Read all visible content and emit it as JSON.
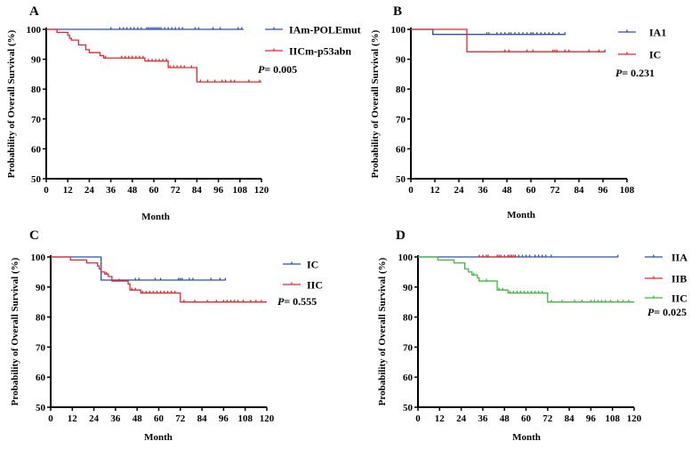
{
  "chart_data": [
    {
      "type": "line",
      "panel": "A",
      "xlabel": "Month",
      "ylabel": "Probability of Overall Survival (%)",
      "xlim": [
        0,
        120
      ],
      "xticks": [
        0,
        12,
        24,
        36,
        48,
        60,
        72,
        84,
        96,
        108,
        120
      ],
      "ylim": [
        50,
        100
      ],
      "yticks": [
        50,
        60,
        70,
        80,
        90,
        100
      ],
      "legend_position": "right",
      "p_value": {
        "prefix": "P",
        "text": "= 0.005"
      },
      "series": [
        {
          "name": "IAm-POLEmut",
          "color": "#2f4fa8",
          "steps": [
            [
              0,
              100
            ]
          ],
          "end": 110,
          "censored": [
            36,
            41,
            43,
            45,
            47,
            49,
            51,
            53,
            56,
            57,
            58,
            59,
            60,
            61,
            62,
            63,
            64,
            66,
            68,
            70,
            72,
            74,
            76,
            83,
            85,
            93,
            97,
            107,
            109
          ]
        },
        {
          "name": "IICm-p53abn",
          "color": "#e8262b",
          "steps": [
            [
              0,
              100
            ],
            [
              6,
              99
            ],
            [
              12,
              98
            ],
            [
              13,
              97
            ],
            [
              14,
              96.4
            ],
            [
              18,
              94.8
            ],
            [
              22,
              93.2
            ],
            [
              24,
              92.2
            ],
            [
              30,
              91.2
            ],
            [
              32,
              90.4
            ],
            [
              55,
              89.4
            ],
            [
              68,
              87.2
            ],
            [
              84,
              82.4
            ]
          ],
          "end": 120,
          "censored": [
            33,
            42,
            44,
            46,
            48,
            50,
            52,
            54,
            57,
            59,
            61,
            63,
            65,
            67,
            69,
            71,
            73,
            75,
            77,
            81,
            86,
            90,
            94,
            98,
            100,
            103,
            105,
            113,
            119
          ]
        }
      ]
    },
    {
      "type": "line",
      "panel": "B",
      "xlabel": "Month",
      "ylabel": "Probability of Overall Survival (%)",
      "xlim": [
        0,
        108
      ],
      "xticks": [
        0,
        12,
        24,
        36,
        48,
        60,
        72,
        84,
        96,
        108
      ],
      "ylim": [
        50,
        100
      ],
      "yticks": [
        50,
        60,
        70,
        80,
        90,
        100
      ],
      "legend_position": "right",
      "p_value": {
        "prefix": "P",
        "text": "= 0.231"
      },
      "series": [
        {
          "name": "IA1",
          "color": "#2f4fa8",
          "steps": [
            [
              0,
              100
            ],
            [
              11,
              98.3
            ]
          ],
          "end": 77,
          "censored": [
            11,
            38,
            39,
            43,
            45,
            47,
            49,
            50,
            52,
            54,
            56,
            58,
            60,
            61,
            63,
            65,
            67,
            69,
            71,
            74,
            77
          ]
        },
        {
          "name": "IC",
          "color": "#e8262b",
          "steps": [
            [
              0,
              100
            ],
            [
              28,
              92.5
            ]
          ],
          "end": 97,
          "censored": [
            47,
            49,
            58,
            61,
            71,
            72,
            73,
            77,
            79,
            89,
            94,
            97
          ]
        }
      ]
    },
    {
      "type": "line",
      "panel": "C",
      "xlabel": "Month",
      "ylabel": "Probability of Overall Survival (%)",
      "xlim": [
        0,
        120
      ],
      "xticks": [
        0,
        12,
        24,
        36,
        48,
        60,
        72,
        84,
        96,
        108,
        120
      ],
      "ylim": [
        50,
        100
      ],
      "yticks": [
        50,
        60,
        70,
        80,
        90,
        100
      ],
      "legend_position": "right",
      "p_value": {
        "prefix": "P",
        "text": "= 0.555"
      },
      "series": [
        {
          "name": "IC",
          "color": "#2f4fa8",
          "steps": [
            [
              0,
              100
            ],
            [
              28,
              92.3
            ]
          ],
          "end": 97,
          "censored": [
            47,
            49,
            58,
            61,
            71,
            72,
            73,
            77,
            79,
            89,
            94,
            97
          ]
        },
        {
          "name": "IIC",
          "color": "#e8262b",
          "steps": [
            [
              0,
              100
            ],
            [
              11,
              99
            ],
            [
              20,
              98
            ],
            [
              26,
              97
            ],
            [
              27,
              96
            ],
            [
              28,
              95
            ],
            [
              30,
              94.3
            ],
            [
              32,
              93.5
            ],
            [
              34,
              92
            ],
            [
              43,
              91
            ],
            [
              44,
              89
            ],
            [
              50,
              88
            ],
            [
              72,
              85
            ]
          ],
          "end": 120,
          "censored": [
            31,
            38,
            45,
            47,
            51,
            53,
            55,
            57,
            59,
            61,
            63,
            65,
            67,
            69,
            74,
            80,
            87,
            92,
            96,
            98,
            100,
            102,
            104,
            107,
            111,
            114,
            117
          ]
        }
      ]
    },
    {
      "type": "line",
      "panel": "D",
      "xlabel": "Month",
      "ylabel": "Probability of Overall Survival (%)",
      "xlim": [
        0,
        120
      ],
      "xticks": [
        0,
        12,
        24,
        36,
        48,
        60,
        72,
        84,
        96,
        108,
        120
      ],
      "ylim": [
        50,
        100
      ],
      "yticks": [
        50,
        60,
        70,
        80,
        90,
        100
      ],
      "legend_position": "right",
      "p_value": {
        "prefix": "P",
        "text": "= 0.025"
      },
      "series": [
        {
          "name": "IIA",
          "color": "#2f4fa8",
          "steps": [
            [
              0,
              100
            ]
          ],
          "end": 111,
          "censored": [
            36,
            38,
            44,
            46,
            48,
            50,
            52,
            54,
            56,
            58,
            60,
            62,
            65,
            67,
            69,
            71,
            74,
            111
          ]
        },
        {
          "name": "IIB",
          "color": "#e8262b",
          "steps": [
            [
              34,
              100
            ]
          ],
          "end": 55,
          "censored": [
            34,
            39,
            45,
            51,
            53
          ]
        },
        {
          "name": "IIC",
          "color": "#3db83a",
          "steps": [
            [
              0,
              100
            ],
            [
              11,
              99
            ],
            [
              20,
              98
            ],
            [
              26,
              96
            ],
            [
              28,
              95
            ],
            [
              30,
              94
            ],
            [
              33,
              93
            ],
            [
              34,
              92
            ],
            [
              44,
              89
            ],
            [
              50,
              88
            ],
            [
              72,
              85
            ]
          ],
          "end": 120,
          "censored": [
            31,
            38,
            45,
            47,
            51,
            53,
            55,
            57,
            59,
            61,
            63,
            65,
            67,
            69,
            74,
            80,
            87,
            91,
            96,
            98,
            100,
            102,
            104,
            107,
            111,
            114,
            117
          ]
        }
      ]
    }
  ]
}
